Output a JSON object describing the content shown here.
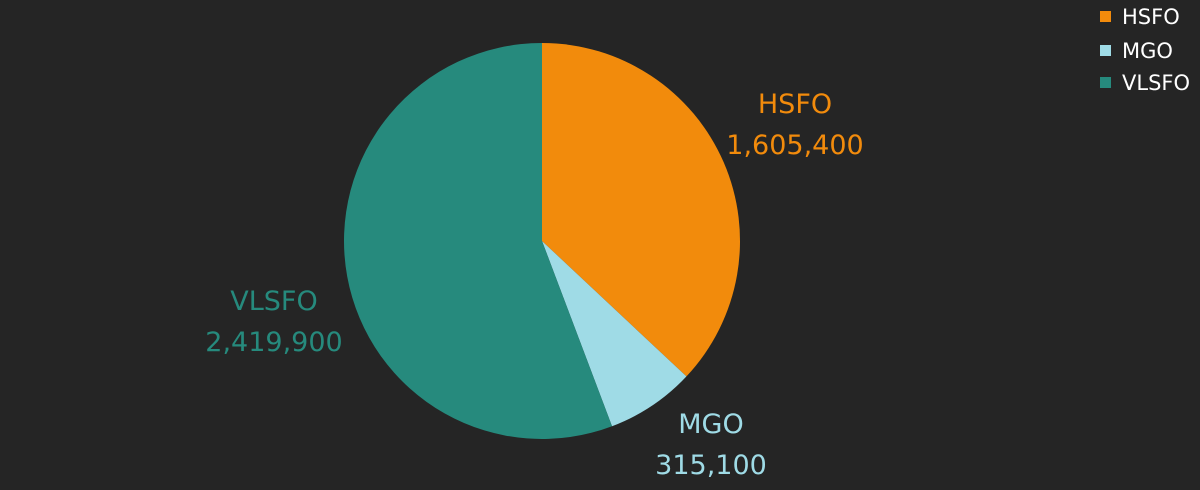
{
  "chart_data": {
    "type": "pie",
    "title": "",
    "categories": [
      "HSFO",
      "MGO",
      "VLSFO"
    ],
    "values": [
      1605400,
      315100,
      2419900
    ],
    "value_labels": [
      "1,605,400",
      "315,100",
      "2,419,900"
    ],
    "colors": [
      "#f28b0c",
      "#9fdbe6",
      "#268a7d"
    ],
    "start_angle_deg": 0,
    "direction": "clockwise",
    "legend": {
      "placement": "top-right",
      "entries": [
        "HSFO",
        "MGO",
        "VLSFO"
      ]
    }
  }
}
